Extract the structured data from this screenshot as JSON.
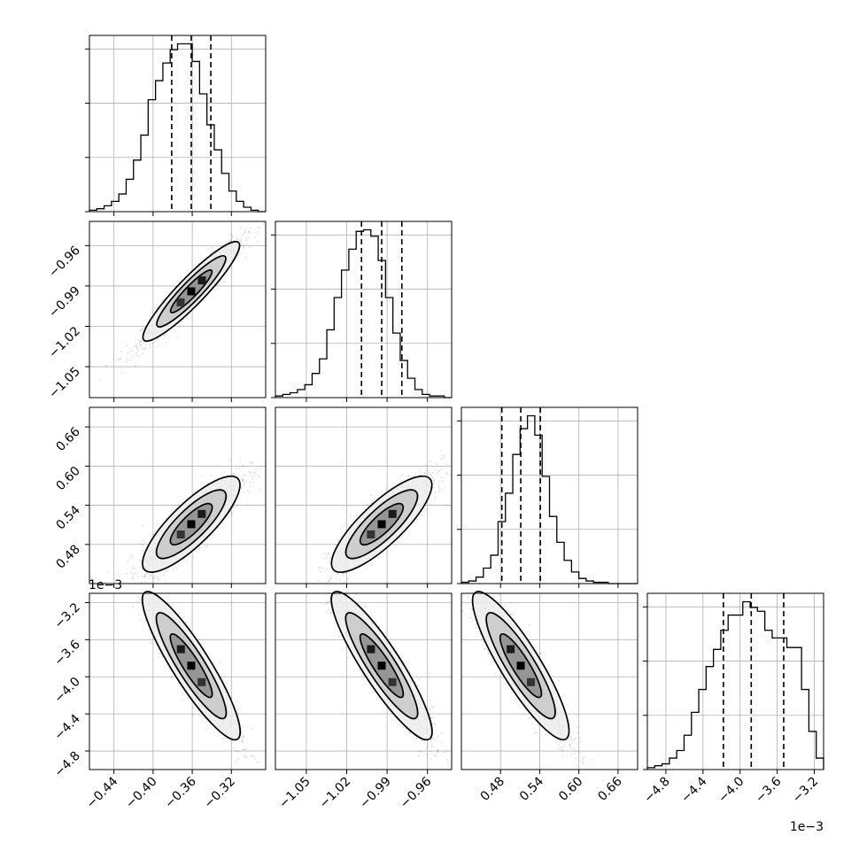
{
  "chart_data": {
    "type": "corner",
    "parameters": [
      {
        "xlim": [
          -0.465,
          -0.285
        ],
        "median": -0.361,
        "q16": -0.381,
        "q84": -0.341,
        "ticks": [
          -0.44,
          -0.4,
          -0.36,
          -0.32
        ],
        "tick_labels": [
          "−0.44",
          "−0.40",
          "−0.36",
          "−0.32"
        ]
      },
      {
        "xlim": [
          -1.073,
          -0.942
        ],
        "median": -0.994,
        "q16": -1.009,
        "q84": -0.979,
        "ticks": [
          -1.05,
          -1.02,
          -0.99,
          -0.96
        ],
        "tick_labels": [
          "−1.05",
          "−1.02",
          "−0.99",
          "−0.96"
        ]
      },
      {
        "xlim": [
          0.42,
          0.69
        ],
        "median": 0.511,
        "q16": 0.482,
        "q84": 0.541,
        "ticks": [
          0.48,
          0.54,
          0.6,
          0.66
        ],
        "tick_labels": [
          "0.48",
          "0.54",
          "0.60",
          "0.66"
        ]
      },
      {
        "xlim": [
          -5.0,
          -3.1
        ],
        "median": -3.88,
        "q16": -4.18,
        "q84": -3.53,
        "ticks": [
          -4.8,
          -4.4,
          -4.0,
          -3.6,
          -3.2
        ],
        "tick_labels": [
          "−4.8",
          "−4.4",
          "−4.0",
          "−3.6",
          "−3.2"
        ],
        "offset_label": "1e−3"
      }
    ],
    "histograms": [
      [
        1,
        2,
        4,
        7,
        12,
        22,
        35,
        52,
        76,
        89,
        101,
        110,
        114,
        114,
        102,
        80,
        59,
        42,
        26,
        14,
        7,
        3,
        1,
        0
      ],
      [
        1,
        2,
        3,
        5,
        8,
        15,
        24,
        42,
        62,
        79,
        92,
        103,
        104,
        100,
        85,
        62,
        40,
        23,
        12,
        5,
        2,
        1,
        1,
        0
      ],
      [
        1,
        2,
        5,
        12,
        22,
        48,
        70,
        100,
        120,
        130,
        115,
        83,
        52,
        32,
        18,
        9,
        4,
        2,
        1,
        1,
        0,
        0,
        0,
        0
      ],
      [
        1,
        2,
        3,
        6,
        10,
        18,
        30,
        42,
        54,
        63,
        73,
        81,
        81,
        88,
        85,
        83,
        73,
        69,
        69,
        64,
        64,
        42,
        20,
        6
      ]
    ],
    "correlations": [
      {
        "x": 0,
        "y": 1,
        "rho": 0.95
      },
      {
        "x": 0,
        "y": 2,
        "rho": 0.88
      },
      {
        "x": 1,
        "y": 2,
        "rho": 0.88
      },
      {
        "x": 0,
        "y": 3,
        "rho": -0.93
      },
      {
        "x": 1,
        "y": 3,
        "rho": -0.93
      },
      {
        "x": 2,
        "y": 3,
        "rho": -0.92
      }
    ],
    "grid": true
  }
}
